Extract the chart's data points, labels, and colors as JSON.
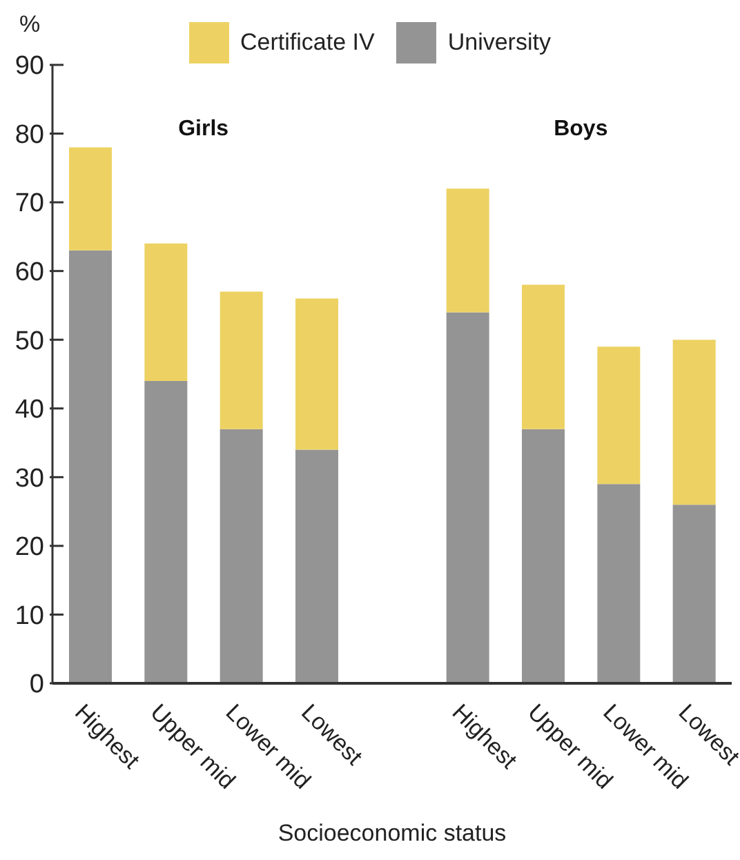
{
  "chart_data": {
    "type": "bar",
    "stacked": true,
    "ylabel": "%",
    "xlabel": "Socioeconomic status",
    "categories": [
      "Highest",
      "Upper mid",
      "Lower mid",
      "Lowest",
      null,
      "Highest",
      "Upper mid",
      "Lower mid",
      "Lowest"
    ],
    "series": [
      {
        "name": "University",
        "color": "#949494",
        "values": [
          63,
          44,
          37,
          34,
          null,
          54,
          37,
          29,
          26
        ]
      },
      {
        "name": "Certificate IV",
        "color": "#edd263",
        "values": [
          15,
          20,
          20,
          22,
          null,
          18,
          21,
          20,
          24
        ]
      }
    ],
    "ylim": [
      0,
      90
    ],
    "yticks": [
      0,
      10,
      20,
      30,
      40,
      50,
      60,
      70,
      80,
      90
    ],
    "annotations": [
      "Girls",
      "Boys"
    ],
    "legend": "top",
    "grid": false
  }
}
